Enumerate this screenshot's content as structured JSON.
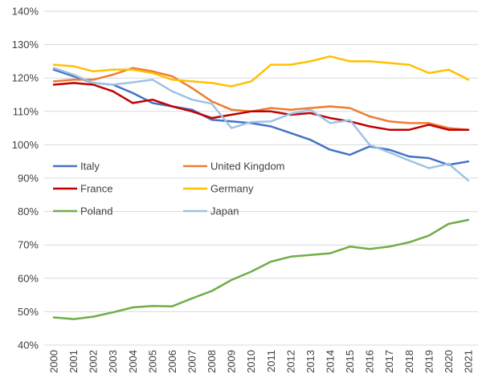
{
  "chart_data": {
    "type": "line",
    "title": "",
    "xlabel": "",
    "ylabel": "",
    "grid": true,
    "legend_position": "inside-upper-left-two-columns",
    "x": [
      2000,
      2001,
      2002,
      2003,
      2004,
      2005,
      2006,
      2007,
      2008,
      2009,
      2010,
      2011,
      2012,
      2013,
      2014,
      2015,
      2016,
      2017,
      2018,
      2019,
      2020,
      2021
    ],
    "y_axis": {
      "min": 40,
      "max": 140,
      "step": 10,
      "format": "percent"
    },
    "y_tick_labels": [
      "140%",
      "130%",
      "120%",
      "110%",
      "100%",
      "90%",
      "80%",
      "70%",
      "60%",
      "50%",
      "40%"
    ],
    "series": [
      {
        "name": "Italy",
        "color": "#4472C4",
        "values": [
          122.5,
          120.5,
          118.5,
          118,
          115.5,
          112.5,
          111.5,
          110.5,
          107.5,
          107,
          106.5,
          105.5,
          103.5,
          101.5,
          98.5,
          97,
          99.5,
          98.5,
          96.5,
          96,
          94,
          95
        ]
      },
      {
        "name": "United Kingdom",
        "color": "#ED7D31",
        "values": [
          119,
          119.5,
          119.5,
          121,
          123,
          122,
          120.5,
          117,
          113,
          110.5,
          110,
          111,
          110.5,
          111,
          111.5,
          111,
          108.5,
          107,
          106.5,
          106.5,
          105,
          104.5
        ]
      },
      {
        "name": "France",
        "color": "#C00000",
        "values": [
          118,
          118.5,
          118,
          116,
          112.5,
          113.5,
          111.5,
          110,
          108,
          109,
          110,
          110,
          109,
          109.5,
          108,
          107,
          105.5,
          104.5,
          104.5,
          106,
          104.5,
          104.5
        ]
      },
      {
        "name": "Germany",
        "color": "#FFC000",
        "values": [
          124,
          123.5,
          122,
          122.5,
          122.5,
          121.5,
          119.5,
          119,
          118.5,
          117.5,
          119,
          124,
          124,
          125,
          126.5,
          125,
          125,
          124.5,
          124,
          121.5,
          122.5,
          119.5
        ]
      },
      {
        "name": "Poland",
        "color": "#70AD47",
        "values": [
          48.3,
          47.8,
          48.5,
          49.8,
          51.3,
          51.7,
          51.6,
          54,
          56.2,
          59.5,
          62,
          65,
          66.5,
          67,
          67.5,
          69.5,
          68.8,
          69.5,
          70.8,
          72.8,
          76.3,
          77.5
        ]
      },
      {
        "name": "Japan",
        "color": "#9DC3E6",
        "values": [
          123,
          121,
          118.5,
          118,
          118.7,
          119.5,
          116,
          113.5,
          112.3,
          105,
          106.8,
          107,
          109.3,
          110.5,
          106.5,
          107.4,
          100,
          97.7,
          95.3,
          93,
          94.3,
          89.3
        ]
      }
    ],
    "style": {
      "gridline_color": "#D9D9D9",
      "tick_label_color": "#404040",
      "legend_label_color": "#404040",
      "background": "#FFFFFF",
      "line_width": 2.5
    }
  }
}
